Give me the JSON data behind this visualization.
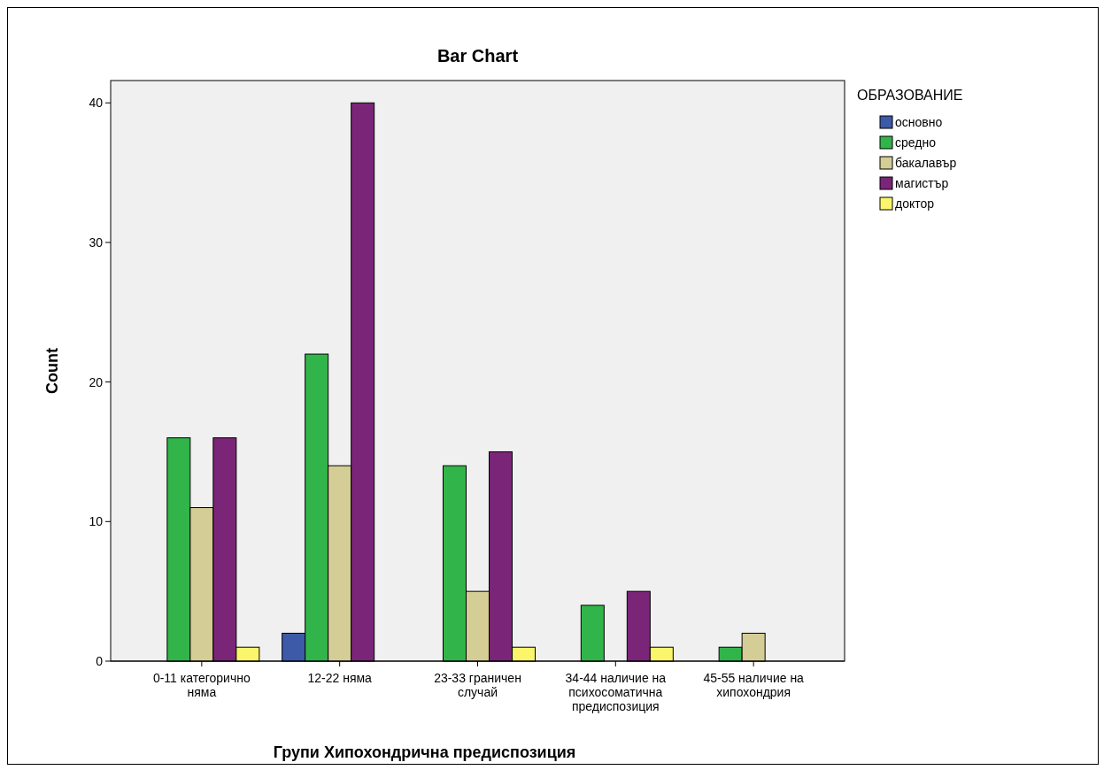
{
  "chart_data": {
    "type": "bar",
    "title": "Bar Chart",
    "xlabel": "Групи Хипохондрична предиспозиция",
    "ylabel": "Count",
    "legend_title": "ОБРАЗОВАНИЕ",
    "legend": "right",
    "categories": [
      "0-11 категорично няма",
      "12-22 няма",
      "23-33 граничен случай",
      "34-44 наличие на психосоматична предиспозиция",
      "45-55 наличие на хипохондрия"
    ],
    "series": [
      {
        "name": "основно",
        "color": "#3c5aa8",
        "values": [
          null,
          2,
          null,
          null,
          null
        ]
      },
      {
        "name": "средно",
        "color": "#31b54a",
        "values": [
          16,
          22,
          14,
          4,
          1
        ]
      },
      {
        "name": "бакалавър",
        "color": "#d4cd96",
        "values": [
          11,
          14,
          5,
          null,
          2
        ]
      },
      {
        "name": "магистър",
        "color": "#7a2577",
        "values": [
          16,
          40,
          15,
          5,
          null
        ]
      },
      {
        "name": "доктор",
        "color": "#faf56b",
        "values": [
          1,
          null,
          1,
          1,
          null
        ]
      }
    ],
    "ylim": [
      0,
      41.6
    ],
    "yticks": [
      0,
      10,
      20,
      30,
      40
    ],
    "grid": false
  }
}
